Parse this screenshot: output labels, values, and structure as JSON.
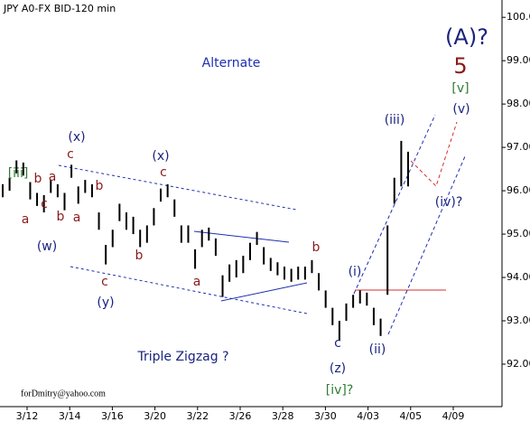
{
  "chart_data": {
    "type": "range-bar",
    "title": "JPY A0-FX BID-120 min",
    "color": "#000000",
    "x_labels": [
      "3/12",
      "3/14",
      "3/16",
      "3/20",
      "3/22",
      "3/26",
      "3/28",
      "3/30",
      "4/03",
      "4/05",
      "4/09"
    ],
    "high": [
      96.15,
      96.3,
      96.7,
      96.65,
      96.2,
      95.95,
      95.9,
      96.25,
      96.15,
      95.95,
      96.6,
      96.1,
      96.25,
      96.15,
      95.5,
      94.75,
      95.1,
      95.7,
      95.5,
      95.4,
      95.1,
      95.2,
      95.6,
      96.05,
      96.15,
      95.8,
      95.2,
      95.2,
      94.65,
      95.1,
      95.15,
      94.9,
      94.05,
      94.3,
      94.4,
      94.5,
      94.8,
      95.05,
      94.7,
      94.45,
      94.35,
      94.25,
      94.2,
      94.25,
      94.25,
      94.4,
      94.1,
      93.7,
      93.3,
      93.0,
      93.4,
      93.6,
      93.7,
      93.65,
      93.3,
      93.05,
      95.2,
      96.3,
      97.15,
      96.9
    ],
    "low": [
      95.85,
      96.0,
      96.4,
      96.35,
      95.8,
      95.65,
      95.5,
      95.95,
      95.85,
      95.55,
      96.3,
      95.7,
      95.95,
      95.85,
      95.1,
      94.3,
      94.7,
      95.3,
      95.1,
      95.0,
      94.7,
      94.8,
      95.2,
      95.75,
      95.85,
      95.4,
      94.8,
      94.8,
      94.2,
      94.7,
      94.85,
      94.5,
      93.55,
      93.9,
      94.0,
      94.1,
      94.4,
      94.75,
      94.3,
      94.15,
      94.05,
      93.95,
      93.9,
      93.95,
      93.95,
      94.1,
      93.7,
      93.3,
      92.9,
      92.55,
      93.0,
      93.3,
      93.4,
      93.35,
      92.9,
      92.65,
      93.6,
      95.7,
      96.1,
      96.1
    ],
    "ylim": [
      91.02,
      100.4
    ],
    "yticks": [
      {
        "value": 92,
        "label": "92.00"
      },
      {
        "value": 93,
        "label": "93.00"
      },
      {
        "value": 94,
        "label": "94.00"
      },
      {
        "value": 95,
        "label": "95.00"
      },
      {
        "value": 96,
        "label": "96.00"
      },
      {
        "value": 97,
        "label": "97.00"
      },
      {
        "value": 98,
        "label": "98.00"
      },
      {
        "value": 99,
        "label": "99.00"
      },
      {
        "value": 100,
        "label": "100.00"
      }
    ],
    "annotations": [
      {
        "text": "[iii]",
        "color": "#2e7d32"
      },
      {
        "text": "b",
        "color": "#8b1a1a"
      },
      {
        "text": "a",
        "color": "#8b1a1a"
      },
      {
        "text": "c",
        "color": "#8b1a1a"
      },
      {
        "text": "b",
        "color": "#8b1a1a"
      },
      {
        "text": "a",
        "color": "#8b1a1a"
      },
      {
        "text": "(w)",
        "color": "#1a237e"
      },
      {
        "text": "(x)",
        "color": "#1a237e"
      },
      {
        "text": "c",
        "color": "#8b1a1a"
      },
      {
        "text": "b",
        "color": "#8b1a1a"
      },
      {
        "text": "a",
        "color": "#8b1a1a"
      },
      {
        "text": "b",
        "color": "#8b1a1a"
      },
      {
        "text": "c",
        "color": "#8b1a1a"
      },
      {
        "text": "(y)",
        "color": "#1a237e"
      },
      {
        "text": "(x)",
        "color": "#1a237e"
      },
      {
        "text": "c",
        "color": "#8b1a1a"
      },
      {
        "text": "a",
        "color": "#8b1a1a"
      },
      {
        "text": "b",
        "color": "#8b1a1a"
      },
      {
        "text": "c",
        "color": "#1a237e"
      },
      {
        "text": "(z)",
        "color": "#1a237e"
      },
      {
        "text": "[iv]?",
        "color": "#2e7d32"
      },
      {
        "text": "(i)",
        "color": "#1a237e"
      },
      {
        "text": "(ii)",
        "color": "#1a237e"
      },
      {
        "text": "(iii)",
        "color": "#1a237e"
      },
      {
        "text": "(iv)?",
        "color": "#1a237e"
      },
      {
        "text": "(v)",
        "color": "#1a237e"
      },
      {
        "text": "[v]",
        "color": "#2e7d32"
      },
      {
        "text": "5",
        "color": "#8b1a1a"
      },
      {
        "text": "(A)?",
        "color": "#1a237e"
      },
      {
        "text": "Alternate",
        "color": "#1f2fb0"
      },
      {
        "text": "Triple Zigzag ?",
        "color": "#1a237e"
      },
      {
        "text": "forDmitry@yahoo.com",
        "color": "#000000"
      }
    ]
  }
}
